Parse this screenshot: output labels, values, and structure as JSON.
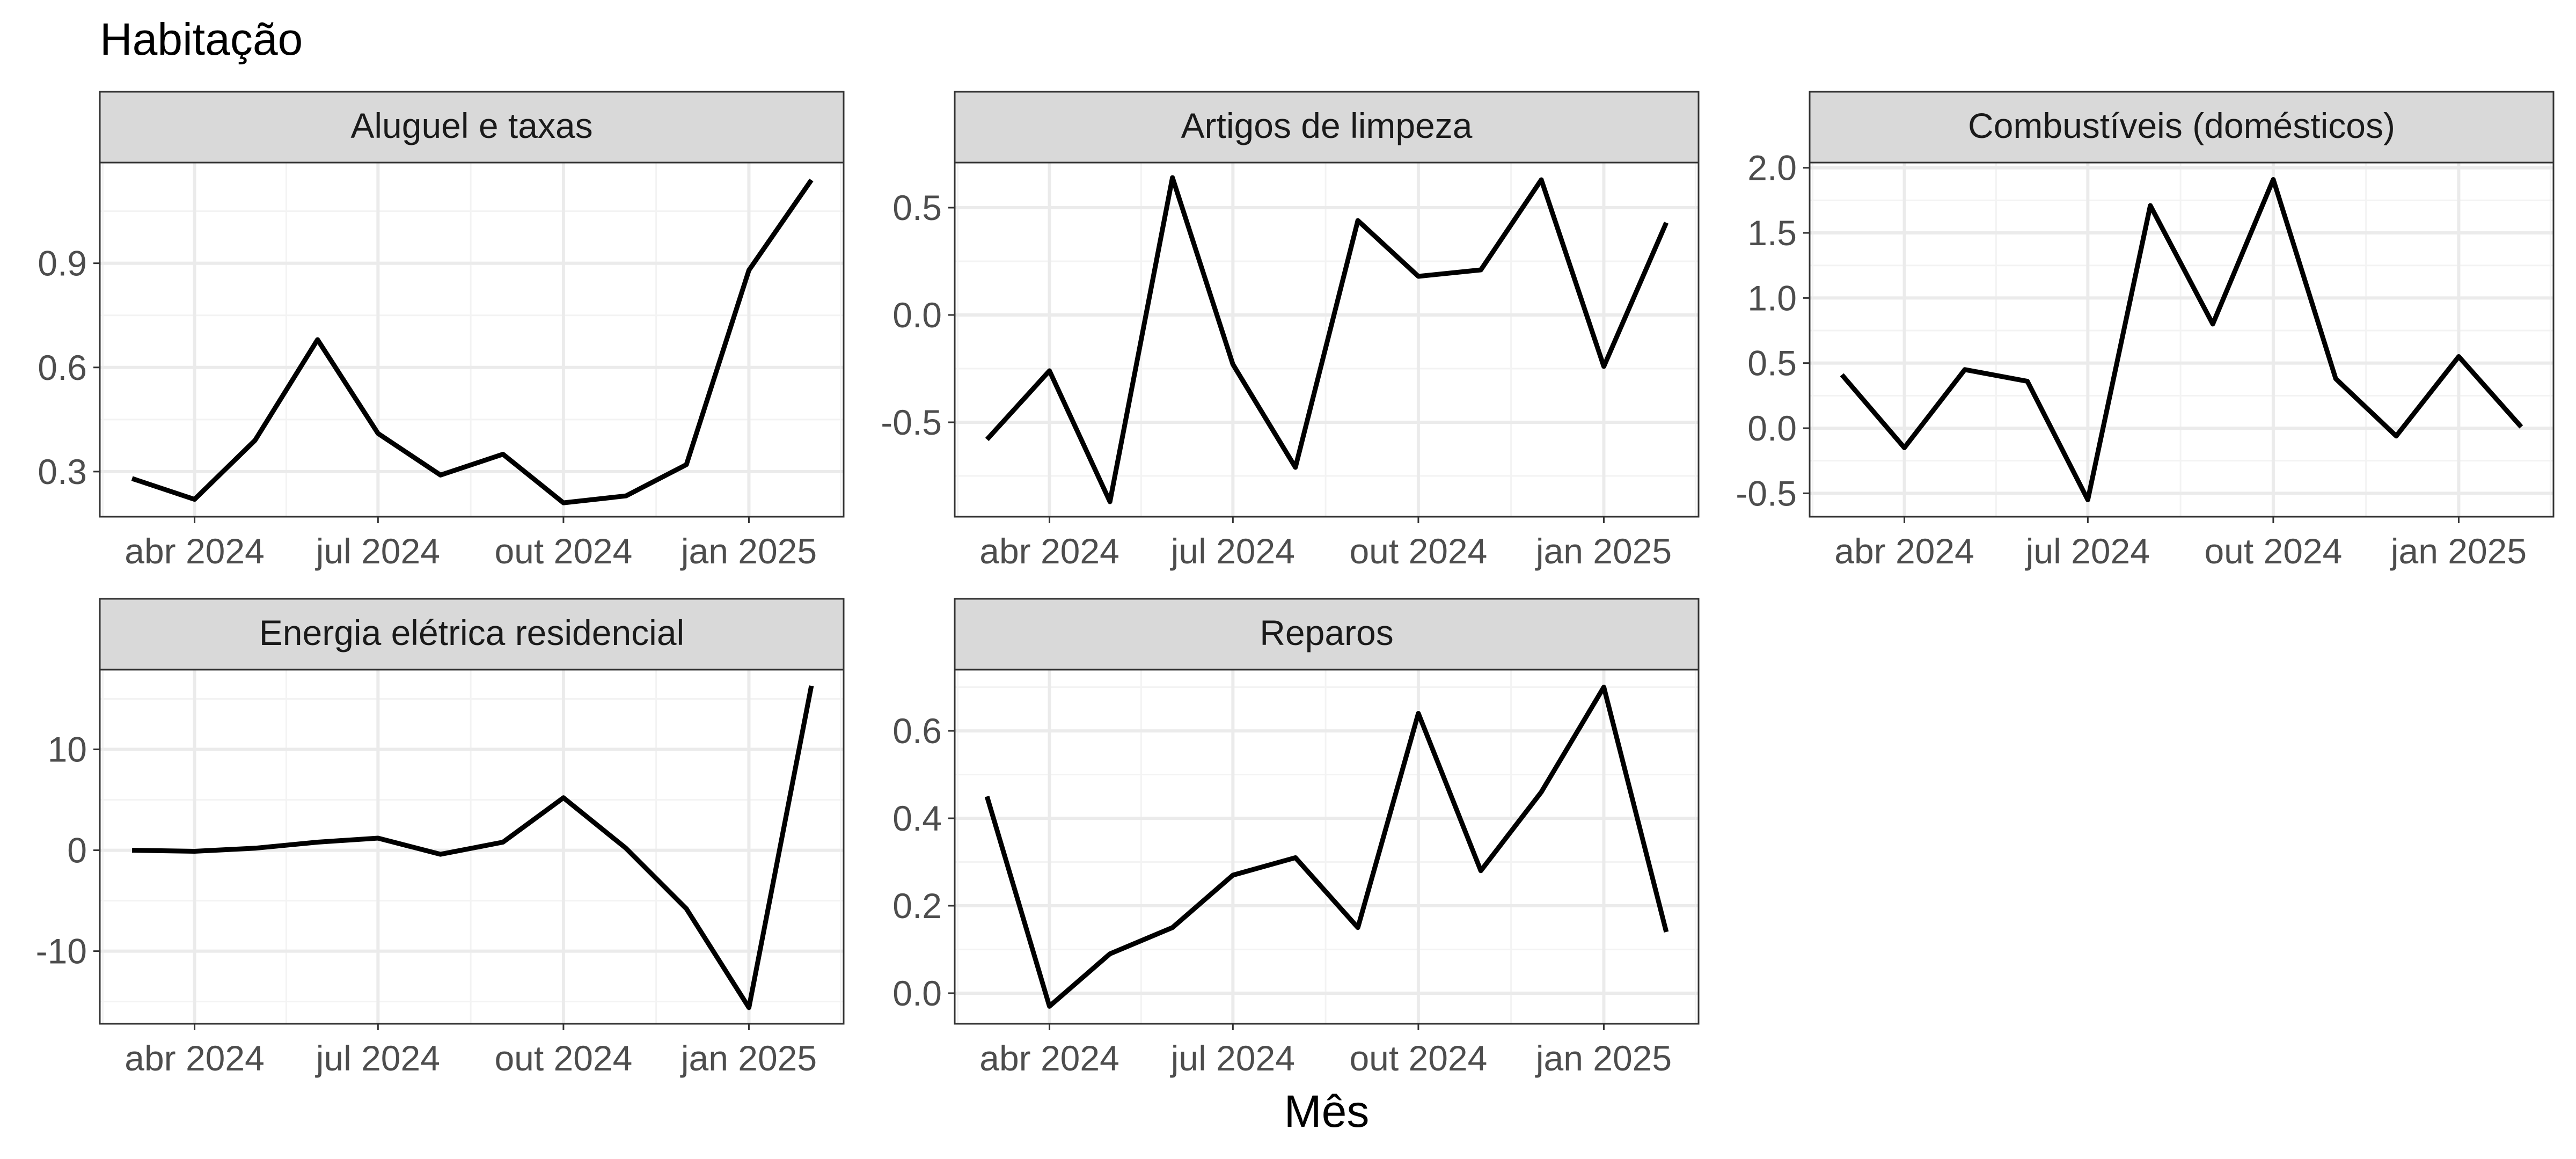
{
  "chart_data": {
    "type": "line",
    "title": "Habitação",
    "xlabel": "Mês",
    "ylabel": "",
    "grid": true,
    "x": [
      "2024-03-01",
      "2024-04-01",
      "2024-05-01",
      "2024-06-01",
      "2024-07-01",
      "2024-08-01",
      "2024-09-01",
      "2024-10-01",
      "2024-11-01",
      "2024-12-01",
      "2025-01-01",
      "2025-02-01"
    ],
    "x_ticks": [
      {
        "date": "2024-04-01",
        "label": "abr 2024"
      },
      {
        "date": "2024-07-01",
        "label": "jul 2024"
      },
      {
        "date": "2024-10-01",
        "label": "out 2024"
      },
      {
        "date": "2025-01-01",
        "label": "jan 2025"
      }
    ],
    "panels": [
      {
        "name": "Aluguel e taxas",
        "values": [
          0.28,
          0.22,
          0.39,
          0.68,
          0.41,
          0.29,
          0.35,
          0.21,
          0.23,
          0.32,
          0.88,
          1.14
        ],
        "ylim": [
          0.17,
          1.19
        ],
        "y_ticks": [
          0.3,
          0.6,
          0.9
        ],
        "y_tick_labels": [
          "0.3",
          "0.6",
          "0.9"
        ]
      },
      {
        "name": "Artigos de limpeza",
        "values": [
          -0.58,
          -0.26,
          -0.87,
          0.64,
          -0.23,
          -0.71,
          0.44,
          0.18,
          0.21,
          0.63,
          -0.24,
          0.43
        ],
        "ylim": [
          -0.94,
          0.71
        ],
        "y_ticks": [
          -0.5,
          0.0,
          0.5
        ],
        "y_tick_labels": [
          "-0.5",
          "0.0",
          "0.5"
        ]
      },
      {
        "name": "Combustíveis (domésticos)",
        "values": [
          0.41,
          -0.15,
          0.45,
          0.36,
          -0.55,
          1.71,
          0.8,
          1.91,
          0.38,
          -0.06,
          0.55,
          0.01
        ],
        "ylim": [
          -0.68,
          2.04
        ],
        "y_ticks": [
          -0.5,
          0.0,
          0.5,
          1.0,
          1.5,
          2.0
        ],
        "y_tick_labels": [
          "-0.5",
          "0.0",
          "0.5",
          "1.0",
          "1.5",
          "2.0"
        ]
      },
      {
        "name": "Energia elétrica residencial",
        "values": [
          0.0,
          -0.1,
          0.2,
          0.8,
          1.2,
          -0.4,
          0.8,
          5.2,
          0.2,
          -5.8,
          -15.6,
          16.3
        ],
        "ylim": [
          -17.2,
          17.9
        ],
        "y_ticks": [
          -10,
          0,
          10
        ],
        "y_tick_labels": [
          "-10",
          "0",
          "10"
        ]
      },
      {
        "name": "Reparos",
        "values": [
          0.45,
          -0.03,
          0.09,
          0.15,
          0.27,
          0.31,
          0.15,
          0.64,
          0.28,
          0.46,
          0.7,
          0.14
        ],
        "ylim": [
          -0.07,
          0.74
        ],
        "y_ticks": [
          0.0,
          0.2,
          0.4,
          0.6
        ],
        "y_tick_labels": [
          "0.0",
          "0.2",
          "0.4",
          "0.6"
        ]
      }
    ]
  }
}
